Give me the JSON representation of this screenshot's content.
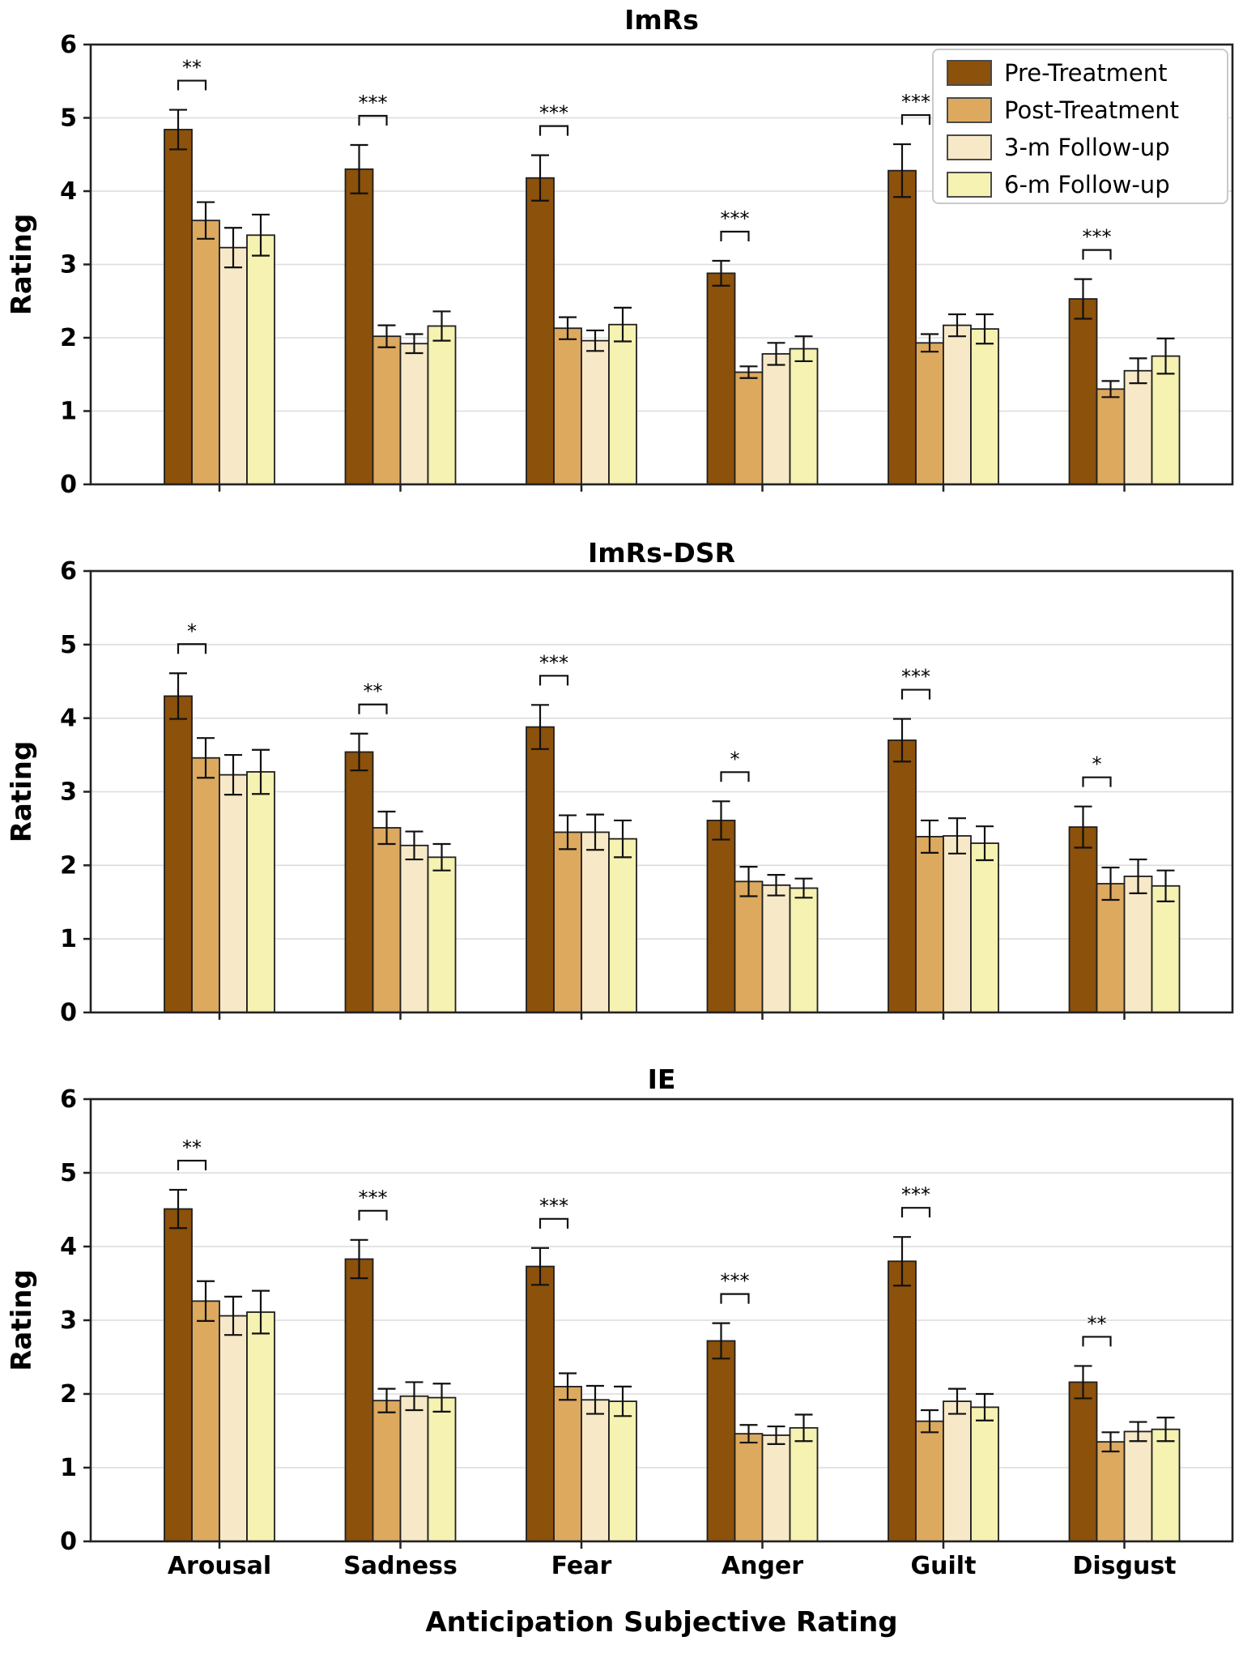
{
  "figure": {
    "ylabel": "Rating",
    "xlabel": "Anticipation Subjective Rating",
    "ylim": [
      0,
      6
    ],
    "yticks": [
      0,
      1,
      2,
      3,
      4,
      5,
      6
    ],
    "grid": "horizontal-light",
    "legend_position": "top-right-first-subplot",
    "categories": [
      "Arousal",
      "Sadness",
      "Fear",
      "Anger",
      "Guilt",
      "Disgust"
    ],
    "legend": [
      {
        "label": "Pre-Treatment",
        "color": "#8C510A"
      },
      {
        "label": "Post-Treatment",
        "color": "#DCA95F"
      },
      {
        "label": "3-m Follow-up",
        "color": "#F7E9C7"
      },
      {
        "label": "6-m Follow-up",
        "color": "#F5F2B2"
      }
    ]
  },
  "chart_data": [
    {
      "type": "bar",
      "title": "ImRs",
      "xlabel": "",
      "ylabel": "Rating",
      "ylim": [
        0,
        6
      ],
      "categories": [
        "Arousal",
        "Sadness",
        "Fear",
        "Anger",
        "Guilt",
        "Disgust"
      ],
      "series": [
        {
          "name": "Pre-Treatment",
          "values": [
            4.84,
            4.3,
            4.18,
            2.88,
            4.28,
            2.53
          ],
          "errors": [
            0.27,
            0.33,
            0.31,
            0.17,
            0.36,
            0.27
          ]
        },
        {
          "name": "Post-Treatment",
          "values": [
            3.6,
            2.02,
            2.13,
            1.53,
            1.93,
            1.3
          ],
          "errors": [
            0.25,
            0.15,
            0.15,
            0.08,
            0.12,
            0.11
          ]
        },
        {
          "name": "3-m Follow-up",
          "values": [
            3.23,
            1.92,
            1.96,
            1.78,
            2.17,
            1.55
          ],
          "errors": [
            0.27,
            0.13,
            0.14,
            0.15,
            0.15,
            0.17
          ]
        },
        {
          "name": "6-m Follow-up",
          "values": [
            3.4,
            2.16,
            2.18,
            1.85,
            2.12,
            1.75
          ],
          "errors": [
            0.28,
            0.2,
            0.23,
            0.17,
            0.2,
            0.24
          ]
        }
      ],
      "significance_pre_vs_post": [
        "**",
        "***",
        "***",
        "***",
        "***",
        "***"
      ]
    },
    {
      "type": "bar",
      "title": "ImRs-DSR",
      "xlabel": "",
      "ylabel": "Rating",
      "ylim": [
        0,
        6
      ],
      "categories": [
        "Arousal",
        "Sadness",
        "Fear",
        "Anger",
        "Guilt",
        "Disgust"
      ],
      "series": [
        {
          "name": "Pre-Treatment",
          "values": [
            4.3,
            3.54,
            3.88,
            2.61,
            3.7,
            2.52
          ],
          "errors": [
            0.31,
            0.25,
            0.3,
            0.26,
            0.29,
            0.28
          ]
        },
        {
          "name": "Post-Treatment",
          "values": [
            3.46,
            2.51,
            2.45,
            1.78,
            2.39,
            1.75
          ],
          "errors": [
            0.27,
            0.22,
            0.23,
            0.2,
            0.22,
            0.22
          ]
        },
        {
          "name": "3-m Follow-up",
          "values": [
            3.23,
            2.27,
            2.45,
            1.73,
            2.4,
            1.85
          ],
          "errors": [
            0.27,
            0.19,
            0.24,
            0.14,
            0.24,
            0.23
          ]
        },
        {
          "name": "6-m Follow-up",
          "values": [
            3.27,
            2.11,
            2.36,
            1.69,
            2.3,
            1.72
          ],
          "errors": [
            0.3,
            0.18,
            0.25,
            0.13,
            0.23,
            0.21
          ]
        }
      ],
      "significance_pre_vs_post": [
        "*",
        "**",
        "***",
        "*",
        "***",
        "*"
      ]
    },
    {
      "type": "bar",
      "title": "IE",
      "xlabel": "Anticipation Subjective Rating",
      "ylabel": "Rating",
      "ylim": [
        0,
        6
      ],
      "categories": [
        "Arousal",
        "Sadness",
        "Fear",
        "Anger",
        "Guilt",
        "Disgust"
      ],
      "series": [
        {
          "name": "Pre-Treatment",
          "values": [
            4.51,
            3.83,
            3.73,
            2.72,
            3.8,
            2.16
          ],
          "errors": [
            0.26,
            0.26,
            0.25,
            0.24,
            0.33,
            0.22
          ]
        },
        {
          "name": "Post-Treatment",
          "values": [
            3.26,
            1.91,
            2.1,
            1.46,
            1.63,
            1.35
          ],
          "errors": [
            0.27,
            0.16,
            0.18,
            0.12,
            0.15,
            0.13
          ]
        },
        {
          "name": "3-m Follow-up",
          "values": [
            3.06,
            1.97,
            1.92,
            1.44,
            1.9,
            1.49
          ],
          "errors": [
            0.26,
            0.19,
            0.19,
            0.12,
            0.17,
            0.13
          ]
        },
        {
          "name": "6-m Follow-up",
          "values": [
            3.11,
            1.95,
            1.9,
            1.54,
            1.82,
            1.52
          ],
          "errors": [
            0.29,
            0.19,
            0.2,
            0.18,
            0.18,
            0.16
          ]
        }
      ],
      "significance_pre_vs_post": [
        "**",
        "***",
        "***",
        "***",
        "***",
        "**"
      ]
    }
  ]
}
